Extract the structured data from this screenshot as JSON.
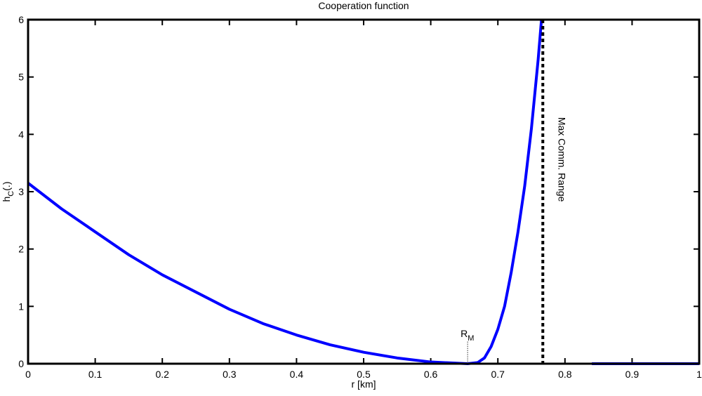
{
  "chart_data": {
    "type": "line",
    "title": "Cooperation function",
    "xlabel": "r [km]",
    "ylabel": {
      "base": "h",
      "sub": "C",
      "tail": "(.)"
    },
    "x": [
      0,
      0.05,
      0.1,
      0.15,
      0.2,
      0.25,
      0.3,
      0.35,
      0.4,
      0.45,
      0.5,
      0.55,
      0.6,
      0.655,
      0.67,
      0.68,
      0.69,
      0.7,
      0.71,
      0.72,
      0.73,
      0.74,
      0.75,
      0.76,
      0.765,
      0.8,
      0.84,
      1
    ],
    "series": [
      {
        "color": "#0000ff",
        "values": [
          3.15,
          2.7,
          2.3,
          1.9,
          1.55,
          1.25,
          0.95,
          0.7,
          0.5,
          0.33,
          0.2,
          0.1,
          0.03,
          0,
          0.02,
          0.1,
          0.3,
          0.6,
          1.0,
          1.6,
          2.3,
          3.1,
          4.1,
          5.3,
          6,
          null,
          0,
          0
        ]
      }
    ],
    "xlim": [
      0,
      1
    ],
    "ylim": [
      0,
      6
    ],
    "xticks": [
      0,
      0.1,
      0.2,
      0.3,
      0.4,
      0.5,
      0.6,
      0.7,
      0.8,
      0.9,
      1
    ],
    "yticks": [
      0,
      1,
      2,
      3,
      4,
      5,
      6
    ],
    "grid": false,
    "vline": {
      "x": 0.767,
      "label": "Max Comm. Range"
    },
    "marker": {
      "x": 0.655,
      "base": "R",
      "sub": "M"
    }
  }
}
